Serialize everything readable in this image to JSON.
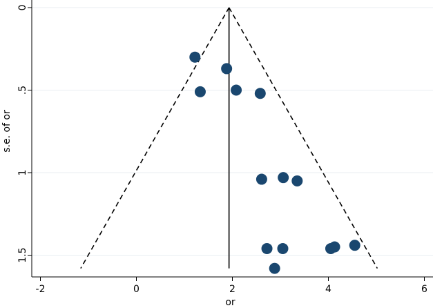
{
  "chart_data": {
    "type": "scatter",
    "title": "",
    "xlabel": "or",
    "ylabel": "s.e. of or",
    "xlim": [
      -2.1,
      6.2
    ],
    "ylim": [
      0,
      1.59
    ],
    "y_reversed": true,
    "x_ticks": [
      {
        "value": -2,
        "label": "-2"
      },
      {
        "value": 0,
        "label": "0"
      },
      {
        "value": 2,
        "label": "2"
      },
      {
        "value": 4,
        "label": "4"
      },
      {
        "value": 6,
        "label": "6"
      }
    ],
    "y_ticks": [
      {
        "value": 0,
        "label": "0"
      },
      {
        "value": 0.5,
        "label": ".5"
      },
      {
        "value": 1,
        "label": "1"
      },
      {
        "value": 1.5,
        "label": "1.5"
      }
    ],
    "grid": "horizontal",
    "marker_color": "#1a476f",
    "points": [
      {
        "x": 1.22,
        "y": 0.3
      },
      {
        "x": 1.88,
        "y": 0.37
      },
      {
        "x": 1.33,
        "y": 0.51
      },
      {
        "x": 2.08,
        "y": 0.5
      },
      {
        "x": 2.58,
        "y": 0.52
      },
      {
        "x": 2.61,
        "y": 1.04
      },
      {
        "x": 3.06,
        "y": 1.03
      },
      {
        "x": 3.35,
        "y": 1.05
      },
      {
        "x": 2.72,
        "y": 1.46
      },
      {
        "x": 3.05,
        "y": 1.46
      },
      {
        "x": 4.05,
        "y": 1.46
      },
      {
        "x": 4.13,
        "y": 1.45
      },
      {
        "x": 4.55,
        "y": 1.44
      },
      {
        "x": 2.88,
        "y": 1.58
      }
    ],
    "pooled_estimate": 1.93,
    "funnel": {
      "apex": {
        "x": 1.93,
        "y": 0
      },
      "left_base": {
        "x": -1.16,
        "y": 1.58
      },
      "right_base": {
        "x": 5.02,
        "y": 1.58
      }
    }
  }
}
